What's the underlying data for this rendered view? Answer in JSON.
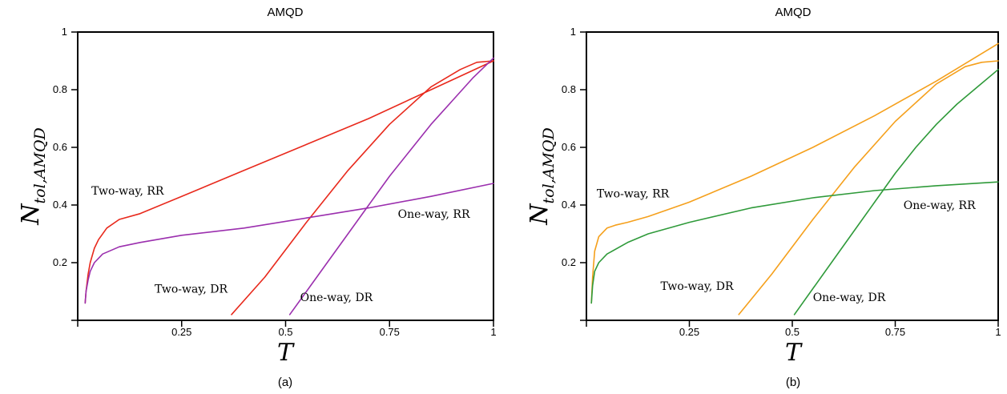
{
  "chart_data": [
    {
      "type": "line",
      "panel": "a",
      "title": "AMQD",
      "caption": "(a)",
      "xlabel": "T",
      "ylabel_main": "N",
      "ylabel_sub": "tol,AMQD",
      "xlim": [
        0,
        1
      ],
      "ylim": [
        0,
        1
      ],
      "xticks": [
        0,
        0.25,
        0.5,
        0.75,
        1
      ],
      "xtick_labels": [
        "",
        "0.25",
        "0.5",
        "0.75",
        "1"
      ],
      "yticks": [
        0,
        0.2,
        0.4,
        0.6,
        0.8,
        1
      ],
      "ytick_labels": [
        "",
        "0.2",
        "0.4",
        "0.6",
        "0.8",
        "1"
      ],
      "grid": false,
      "series": [
        {
          "color": "#e8291c",
          "x": [
            0.018,
            0.02,
            0.025,
            0.03,
            0.04,
            0.05,
            0.07,
            0.1,
            0.15,
            0.25,
            0.4,
            0.55,
            0.7,
            0.85,
            1.0
          ],
          "y": [
            0.06,
            0.1,
            0.16,
            0.2,
            0.25,
            0.28,
            0.32,
            0.35,
            0.37,
            0.43,
            0.52,
            0.61,
            0.7,
            0.8,
            0.9
          ]
        },
        {
          "color": "#e8291c",
          "x": [
            0.37,
            0.45,
            0.55,
            0.65,
            0.75,
            0.85,
            0.92,
            0.96,
            1.0
          ],
          "y": [
            0.02,
            0.15,
            0.34,
            0.52,
            0.68,
            0.81,
            0.87,
            0.895,
            0.9
          ]
        },
        {
          "color": "#9b2fae",
          "x": [
            0.018,
            0.02,
            0.025,
            0.03,
            0.04,
            0.06,
            0.1,
            0.15,
            0.25,
            0.4,
            0.55,
            0.7,
            0.85,
            1.0
          ],
          "y": [
            0.06,
            0.1,
            0.14,
            0.17,
            0.2,
            0.23,
            0.255,
            0.27,
            0.295,
            0.32,
            0.355,
            0.39,
            0.43,
            0.475
          ]
        },
        {
          "color": "#9b2fae",
          "x": [
            0.51,
            0.55,
            0.6,
            0.65,
            0.7,
            0.75,
            0.8,
            0.85,
            0.9,
            0.95,
            1.0
          ],
          "y": [
            0.02,
            0.1,
            0.2,
            0.3,
            0.4,
            0.5,
            0.59,
            0.68,
            0.76,
            0.84,
            0.91
          ]
        }
      ],
      "annotations": [
        {
          "text": "Two-way, RR",
          "x": 0.033,
          "y": 0.45
        },
        {
          "text": "One-way, RR",
          "x": 0.77,
          "y": 0.37
        },
        {
          "text": "Two-way, DR",
          "x": 0.185,
          "y": 0.11
        },
        {
          "text": "One-way, DR",
          "x": 0.535,
          "y": 0.08
        }
      ]
    },
    {
      "type": "line",
      "panel": "b",
      "title": "AMQD",
      "caption": "(b)",
      "xlabel": "T",
      "ylabel_main": "N",
      "ylabel_sub": "tol,AMQD",
      "xlim": [
        0,
        1
      ],
      "ylim": [
        0,
        1
      ],
      "xticks": [
        0,
        0.25,
        0.5,
        0.75,
        1
      ],
      "xtick_labels": [
        "",
        "0.25",
        "0.5",
        "0.75",
        "1"
      ],
      "yticks": [
        0,
        0.2,
        0.4,
        0.6,
        0.8,
        1
      ],
      "ytick_labels": [
        "",
        "0.2",
        "0.4",
        "0.6",
        "0.8",
        "1"
      ],
      "grid": false,
      "series": [
        {
          "color": "#f5a01c",
          "x": [
            0.012,
            0.015,
            0.02,
            0.03,
            0.05,
            0.07,
            0.1,
            0.15,
            0.25,
            0.4,
            0.55,
            0.7,
            0.85,
            1.0
          ],
          "y": [
            0.06,
            0.15,
            0.24,
            0.29,
            0.32,
            0.33,
            0.34,
            0.36,
            0.41,
            0.5,
            0.6,
            0.71,
            0.83,
            0.96
          ]
        },
        {
          "color": "#f5a01c",
          "x": [
            0.37,
            0.45,
            0.55,
            0.65,
            0.75,
            0.85,
            0.92,
            0.96,
            1.0
          ],
          "y": [
            0.02,
            0.16,
            0.35,
            0.53,
            0.69,
            0.82,
            0.88,
            0.895,
            0.9
          ]
        },
        {
          "color": "#2f9a3a",
          "x": [
            0.012,
            0.015,
            0.02,
            0.03,
            0.05,
            0.1,
            0.15,
            0.25,
            0.4,
            0.55,
            0.7,
            0.85,
            1.0
          ],
          "y": [
            0.06,
            0.12,
            0.17,
            0.2,
            0.23,
            0.27,
            0.3,
            0.34,
            0.39,
            0.425,
            0.45,
            0.467,
            0.48
          ]
        },
        {
          "color": "#2f9a3a",
          "x": [
            0.505,
            0.55,
            0.6,
            0.65,
            0.7,
            0.75,
            0.8,
            0.85,
            0.9,
            0.95,
            1.0
          ],
          "y": [
            0.02,
            0.11,
            0.21,
            0.31,
            0.41,
            0.51,
            0.6,
            0.68,
            0.75,
            0.81,
            0.87
          ]
        }
      ],
      "annotations": [
        {
          "text": "Two-way, RR",
          "x": 0.025,
          "y": 0.44
        },
        {
          "text": "One-way, RR",
          "x": 0.77,
          "y": 0.4
        },
        {
          "text": "Two-way, DR",
          "x": 0.18,
          "y": 0.12
        },
        {
          "text": "One-way, DR",
          "x": 0.55,
          "y": 0.08
        }
      ]
    }
  ]
}
